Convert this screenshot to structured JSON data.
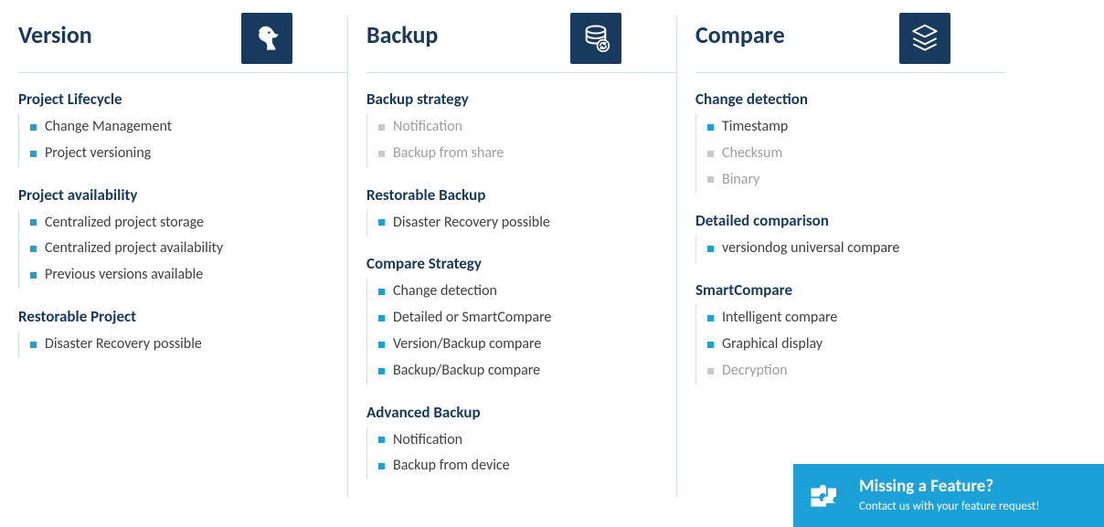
{
  "colors": {
    "heading": "#173a5e",
    "icon_bg": "#173a5e",
    "accent": "#1ba1d8",
    "text": "#404040",
    "inactive_text": "#9e9e9e",
    "inactive_bullet": "#c9c9c9",
    "divider": "#cfe1ec",
    "background": "#ffffff"
  },
  "columns": [
    {
      "title": "Version",
      "icon": "dog-icon",
      "sections": [
        {
          "title": "Project Lifecycle",
          "items": [
            {
              "label": "Change Management",
              "active": true
            },
            {
              "label": "Project versioning",
              "active": true
            }
          ]
        },
        {
          "title": "Project availability",
          "items": [
            {
              "label": "Centralized project storage",
              "active": true
            },
            {
              "label": "Centralized project availability",
              "active": true
            },
            {
              "label": "Previous versions available",
              "active": true
            }
          ]
        },
        {
          "title": "Restorable Project",
          "items": [
            {
              "label": "Disaster Recovery possible",
              "active": true
            }
          ]
        }
      ]
    },
    {
      "title": "Backup",
      "icon": "backup-icon",
      "sections": [
        {
          "title": "Backup strategy",
          "items": [
            {
              "label": "Notification",
              "active": false
            },
            {
              "label": "Backup from share",
              "active": false
            }
          ]
        },
        {
          "title": "Restorable Backup",
          "items": [
            {
              "label": "Disaster Recovery possible",
              "active": true
            }
          ]
        },
        {
          "title": "Compare Strategy",
          "items": [
            {
              "label": "Change detection",
              "active": true
            },
            {
              "label": "Detailed or SmartCompare",
              "active": true
            },
            {
              "label": "Version/Backup compare",
              "active": true
            },
            {
              "label": "Backup/Backup compare",
              "active": true
            }
          ]
        },
        {
          "title": "Advanced Backup",
          "items": [
            {
              "label": "Notification",
              "active": true
            },
            {
              "label": "Backup from device",
              "active": true
            }
          ]
        }
      ]
    },
    {
      "title": "Compare",
      "icon": "layers-icon",
      "sections": [
        {
          "title": "Change detection",
          "items": [
            {
              "label": "Timestamp",
              "active": true
            },
            {
              "label": "Checksum",
              "active": false
            },
            {
              "label": "Binary",
              "active": false
            }
          ]
        },
        {
          "title": "Detailed comparison",
          "items": [
            {
              "label": "versiondog universal compare",
              "active": true
            }
          ]
        },
        {
          "title": "SmartCompare",
          "items": [
            {
              "label": "Intelligent compare",
              "active": true
            },
            {
              "label": "Graphical display",
              "active": true
            },
            {
              "label": "Decryption",
              "active": false
            }
          ]
        }
      ]
    }
  ],
  "cta": {
    "title": "Missing a Feature?",
    "subtitle": "Contact us with your feature request!"
  }
}
